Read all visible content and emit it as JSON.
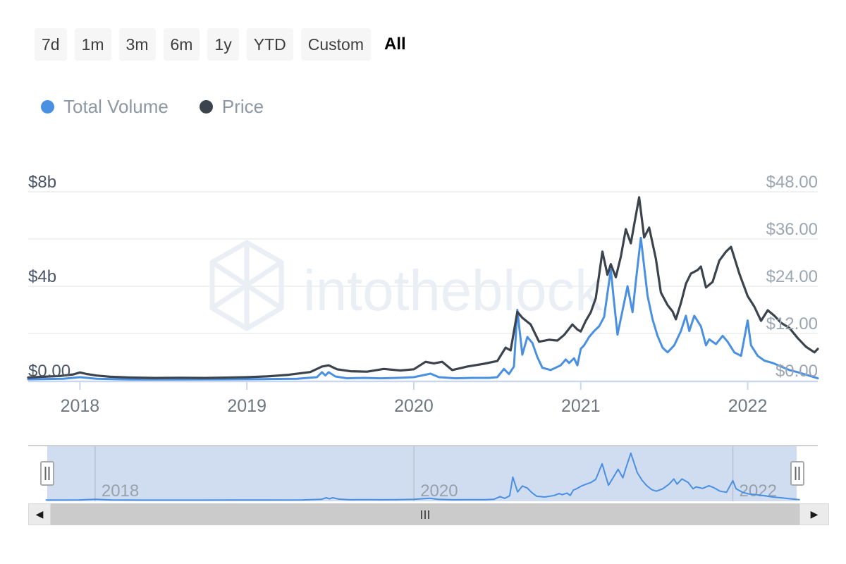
{
  "toolbar": {
    "ranges": [
      "7d",
      "1m",
      "3m",
      "6m",
      "1y",
      "YTD",
      "Custom",
      "All"
    ],
    "active": "All"
  },
  "legend": {
    "items": [
      {
        "label": "Total Volume",
        "color": "#4a90e2"
      },
      {
        "label": "Price",
        "color": "#3b434c"
      }
    ]
  },
  "watermark": {
    "text": "intotheblock",
    "logo": "intotheblock-cube-logo"
  },
  "icons": {
    "scroll_left_arrow": "◀",
    "scroll_right_arrow": "▶"
  },
  "colors": {
    "volume": "#4a90e2",
    "price": "#3b434c",
    "grid": "#f0f1f3",
    "axis_line": "#ccd7eb",
    "left_label": "#4a5568",
    "right_label": "#9ba6b2",
    "x_label": "#6e7780",
    "nav_mask": "#d0dcf0",
    "nav_grid": "#b8c1d1",
    "nav_label": "#99a1aa",
    "watermark": "#eaeef5"
  },
  "chart_data": {
    "type": "line",
    "title": "",
    "legend_position": "top-left",
    "grid": true,
    "left_axis": {
      "unit": "USD billions",
      "range": [
        0,
        8
      ],
      "ticks": [
        8,
        4,
        0
      ],
      "labels": [
        "$8b",
        "$4b",
        "$0.00"
      ]
    },
    "right_axis": {
      "unit": "USD",
      "range": [
        0,
        48
      ],
      "ticks": [
        48,
        36,
        24,
        12,
        0
      ],
      "labels": [
        "$48.00",
        "$36.00",
        "$24.00",
        "$12.00",
        "$0.00"
      ]
    },
    "x_axis": {
      "range": [
        2017.69,
        2022.42
      ],
      "tick_years": [
        2018,
        2019,
        2020,
        2021,
        2022
      ],
      "labels": [
        "2018",
        "2019",
        "2020",
        "2021",
        "2022"
      ]
    },
    "navigator": {
      "range": [
        2017.7,
        2022.4
      ],
      "tick_years": [
        2018,
        2020,
        2022
      ],
      "labels": [
        "2018",
        "2020",
        "2022"
      ],
      "value_max": 6.3
    },
    "series": [
      {
        "name": "Total Volume",
        "color": "#4a90e2",
        "axis": "left",
        "unit": "USD billions",
        "points": [
          [
            2017.69,
            0.06
          ],
          [
            2017.9,
            0.08
          ],
          [
            2018.0,
            0.15
          ],
          [
            2018.1,
            0.08
          ],
          [
            2018.3,
            0.05
          ],
          [
            2018.6,
            0.05
          ],
          [
            2018.9,
            0.06
          ],
          [
            2019.1,
            0.07
          ],
          [
            2019.3,
            0.08
          ],
          [
            2019.42,
            0.15
          ],
          [
            2019.45,
            0.36
          ],
          [
            2019.47,
            0.22
          ],
          [
            2019.49,
            0.36
          ],
          [
            2019.53,
            0.18
          ],
          [
            2019.6,
            0.1
          ],
          [
            2019.7,
            0.12
          ],
          [
            2019.8,
            0.1
          ],
          [
            2019.9,
            0.12
          ],
          [
            2020.0,
            0.15
          ],
          [
            2020.1,
            0.3
          ],
          [
            2020.15,
            0.15
          ],
          [
            2020.25,
            0.1
          ],
          [
            2020.35,
            0.12
          ],
          [
            2020.45,
            0.12
          ],
          [
            2020.5,
            0.15
          ],
          [
            2020.54,
            0.5
          ],
          [
            2020.57,
            0.28
          ],
          [
            2020.6,
            0.6
          ],
          [
            2020.62,
            3.0
          ],
          [
            2020.65,
            1.1
          ],
          [
            2020.68,
            1.85
          ],
          [
            2020.71,
            1.6
          ],
          [
            2020.74,
            1.0
          ],
          [
            2020.77,
            0.55
          ],
          [
            2020.82,
            0.45
          ],
          [
            2020.88,
            0.65
          ],
          [
            2020.91,
            0.9
          ],
          [
            2020.93,
            0.75
          ],
          [
            2020.96,
            0.95
          ],
          [
            2020.98,
            0.65
          ],
          [
            2021.0,
            1.35
          ],
          [
            2021.02,
            1.5
          ],
          [
            2021.05,
            1.85
          ],
          [
            2021.08,
            2.1
          ],
          [
            2021.11,
            2.3
          ],
          [
            2021.14,
            2.7
          ],
          [
            2021.18,
            4.7
          ],
          [
            2021.2,
            3.3
          ],
          [
            2021.22,
            1.95
          ],
          [
            2021.26,
            3.3
          ],
          [
            2021.28,
            4.0
          ],
          [
            2021.31,
            2.9
          ],
          [
            2021.33,
            4.2
          ],
          [
            2021.36,
            6.05
          ],
          [
            2021.4,
            3.6
          ],
          [
            2021.43,
            2.6
          ],
          [
            2021.46,
            1.9
          ],
          [
            2021.49,
            1.4
          ],
          [
            2021.52,
            1.2
          ],
          [
            2021.56,
            1.5
          ],
          [
            2021.6,
            2.1
          ],
          [
            2021.63,
            2.75
          ],
          [
            2021.65,
            2.1
          ],
          [
            2021.68,
            2.75
          ],
          [
            2021.72,
            2.3
          ],
          [
            2021.75,
            1.5
          ],
          [
            2021.77,
            1.75
          ],
          [
            2021.81,
            1.55
          ],
          [
            2021.85,
            1.9
          ],
          [
            2021.88,
            1.65
          ],
          [
            2021.92,
            1.2
          ],
          [
            2021.96,
            1.05
          ],
          [
            2022.0,
            2.55
          ],
          [
            2022.02,
            1.5
          ],
          [
            2022.06,
            1.05
          ],
          [
            2022.1,
            0.85
          ],
          [
            2022.15,
            0.75
          ],
          [
            2022.2,
            0.6
          ],
          [
            2022.25,
            0.45
          ],
          [
            2022.3,
            0.36
          ],
          [
            2022.35,
            0.25
          ],
          [
            2022.42,
            0.1
          ]
        ]
      },
      {
        "name": "Price",
        "color": "#3b434c",
        "axis": "right",
        "unit": "USD",
        "points": [
          [
            2017.69,
            0.8
          ],
          [
            2017.78,
            1.0
          ],
          [
            2017.88,
            1.2
          ],
          [
            2017.96,
            1.6
          ],
          [
            2018.0,
            2.1
          ],
          [
            2018.04,
            1.7
          ],
          [
            2018.1,
            1.3
          ],
          [
            2018.18,
            1.0
          ],
          [
            2018.3,
            0.8
          ],
          [
            2018.45,
            0.7
          ],
          [
            2018.6,
            0.75
          ],
          [
            2018.75,
            0.7
          ],
          [
            2018.9,
            0.8
          ],
          [
            2019.0,
            0.9
          ],
          [
            2019.12,
            1.1
          ],
          [
            2019.25,
            1.5
          ],
          [
            2019.38,
            2.2
          ],
          [
            2019.45,
            3.6
          ],
          [
            2019.49,
            3.9
          ],
          [
            2019.54,
            2.9
          ],
          [
            2019.62,
            2.4
          ],
          [
            2019.72,
            2.3
          ],
          [
            2019.82,
            3.0
          ],
          [
            2019.92,
            2.6
          ],
          [
            2020.0,
            2.9
          ],
          [
            2020.07,
            4.8
          ],
          [
            2020.12,
            4.4
          ],
          [
            2020.17,
            4.8
          ],
          [
            2020.23,
            2.7
          ],
          [
            2020.32,
            3.6
          ],
          [
            2020.42,
            4.3
          ],
          [
            2020.5,
            5.0
          ],
          [
            2020.55,
            8.4
          ],
          [
            2020.58,
            7.7
          ],
          [
            2020.62,
            17.5
          ],
          [
            2020.65,
            16.0
          ],
          [
            2020.7,
            14.3
          ],
          [
            2020.75,
            9.9
          ],
          [
            2020.81,
            10.4
          ],
          [
            2020.86,
            10.2
          ],
          [
            2020.9,
            11.6
          ],
          [
            2020.95,
            14.3
          ],
          [
            2020.98,
            13.0
          ],
          [
            2021.0,
            12.5
          ],
          [
            2021.03,
            15.2
          ],
          [
            2021.06,
            17.4
          ],
          [
            2021.09,
            21.0
          ],
          [
            2021.13,
            32.8
          ],
          [
            2021.16,
            26.9
          ],
          [
            2021.18,
            29.6
          ],
          [
            2021.21,
            26.3
          ],
          [
            2021.24,
            31.5
          ],
          [
            2021.27,
            38.5
          ],
          [
            2021.3,
            34.9
          ],
          [
            2021.33,
            42.0
          ],
          [
            2021.35,
            46.6
          ],
          [
            2021.38,
            36.4
          ],
          [
            2021.41,
            38.9
          ],
          [
            2021.45,
            31.0
          ],
          [
            2021.48,
            22.4
          ],
          [
            2021.52,
            19.2
          ],
          [
            2021.55,
            17.6
          ],
          [
            2021.57,
            15.6
          ],
          [
            2021.6,
            19.7
          ],
          [
            2021.63,
            24.6
          ],
          [
            2021.66,
            27.2
          ],
          [
            2021.7,
            28.1
          ],
          [
            2021.72,
            29.0
          ],
          [
            2021.75,
            23.7
          ],
          [
            2021.79,
            25.1
          ],
          [
            2021.83,
            30.5
          ],
          [
            2021.87,
            32.8
          ],
          [
            2021.9,
            34.0
          ],
          [
            2021.95,
            27.2
          ],
          [
            2022.0,
            21.5
          ],
          [
            2022.04,
            18.8
          ],
          [
            2022.08,
            15.2
          ],
          [
            2022.12,
            17.9
          ],
          [
            2022.16,
            16.5
          ],
          [
            2022.2,
            14.7
          ],
          [
            2022.25,
            13.4
          ],
          [
            2022.3,
            10.8
          ],
          [
            2022.35,
            8.6
          ],
          [
            2022.4,
            7.2
          ],
          [
            2022.42,
            8.1
          ]
        ]
      }
    ]
  }
}
